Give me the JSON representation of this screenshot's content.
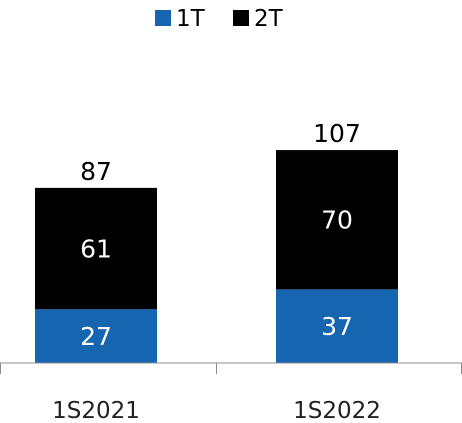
{
  "chart_data": {
    "type": "bar",
    "stacked": true,
    "categories": [
      "1S2021",
      "1S2022"
    ],
    "series": [
      {
        "name": "1T",
        "values": [
          27,
          37
        ],
        "color": "#1565b0"
      },
      {
        "name": "2T",
        "values": [
          61,
          70
        ],
        "color": "#000000"
      }
    ],
    "totals": [
      87,
      107
    ],
    "ylim": [
      0,
      110
    ],
    "legend_position": "top-center",
    "grid": false
  }
}
